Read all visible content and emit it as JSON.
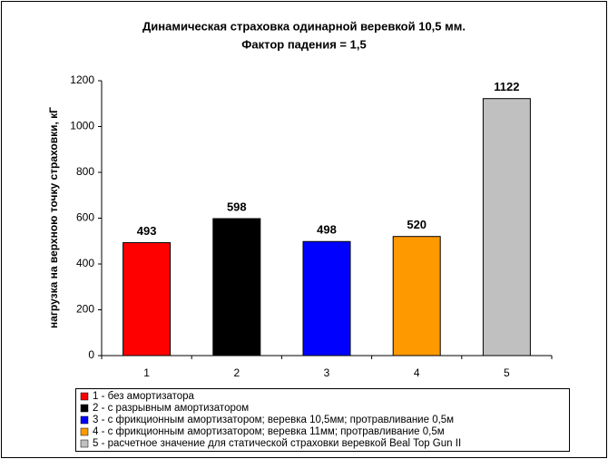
{
  "chart_data": {
    "type": "bar",
    "title": "Динамическая страховка одинарной веревкой 10,5 мм.",
    "subtitle": "Фактор падения = 1,5",
    "y_label": "нагрузка на верхною точку страховки, кГ",
    "categories": [
      "1",
      "2",
      "3",
      "4",
      "5"
    ],
    "values": [
      493,
      598,
      498,
      520,
      1122
    ],
    "colors": [
      "#ff0000",
      "#000000",
      "#0000ff",
      "#ff9900",
      "#c0c0c0"
    ],
    "legend": [
      "1 - без амортизатора",
      "2 - с разрывным амортизатором",
      "3 - с фрикционным амортизатором; веревка 10,5мм; протравливание 0,5м",
      "4 - с фрикционным амортизатором; веревка 11мм; протравливание 0,5м",
      "5 - расчетное значение для статической страховки веревкой Beal Top Gun II"
    ],
    "ylim": [
      0,
      1200
    ],
    "yticks": [
      0,
      200,
      400,
      600,
      800,
      1000,
      1200
    ],
    "grid": false
  }
}
